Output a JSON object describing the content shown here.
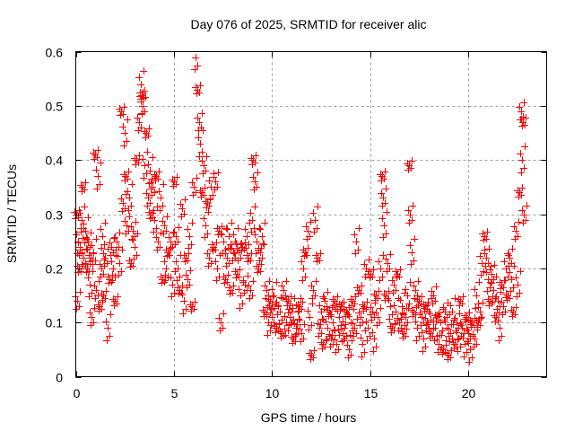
{
  "chart_data": {
    "type": "scatter",
    "title": "Day 076 of 2025, SRMTID for receiver alic",
    "xlabel": "GPS time / hours",
    "ylabel": "SRMTID / TECUs",
    "xlim": [
      0,
      24
    ],
    "ylim": [
      0,
      0.6
    ],
    "xticks": [
      0,
      5,
      10,
      15,
      20
    ],
    "yticks": [
      0,
      0.1,
      0.2,
      0.3,
      0.4,
      0.5,
      0.6
    ],
    "xtick_labels": [
      "0",
      "5",
      "10",
      "15",
      "20"
    ],
    "ytick_labels": [
      "0",
      "0.1",
      "0.2",
      "0.3",
      "0.4",
      "0.5",
      "0.6"
    ],
    "grid": true,
    "marker": "+",
    "color": "#ff0000",
    "series": [
      {
        "name": "SRMTID",
        "x": [
          0.0,
          0.05,
          0.1,
          0.15,
          0.2,
          0.3,
          0.35,
          0.4,
          0.5,
          0.55,
          0.6,
          0.7,
          0.75,
          0.8,
          0.9,
          1.0,
          1.05,
          1.1,
          1.2,
          1.3,
          1.35,
          1.4,
          1.5,
          1.6,
          1.7,
          1.8,
          1.9,
          2.0,
          2.1,
          2.2,
          2.3,
          2.4,
          2.5,
          2.55,
          2.6,
          2.7,
          2.8,
          2.9,
          3.0,
          3.1,
          3.2,
          3.3,
          3.35,
          3.4,
          3.5,
          3.6,
          3.7,
          3.75,
          3.8,
          3.9,
          4.0,
          4.1,
          4.2,
          4.3,
          4.4,
          4.5,
          4.6,
          4.7,
          4.8,
          4.9,
          5.0,
          5.1,
          5.2,
          5.3,
          5.4,
          5.5,
          5.6,
          5.7,
          5.8,
          5.9,
          6.0,
          6.1,
          6.2,
          6.3,
          6.35,
          6.4,
          6.5,
          6.6,
          6.7,
          6.8,
          6.9,
          7.0,
          7.1,
          7.2,
          7.3,
          7.4,
          7.5,
          7.6,
          7.7,
          7.8,
          7.9,
          8.0,
          8.1,
          8.2,
          8.3,
          8.4,
          8.5,
          8.6,
          8.7,
          8.8,
          8.9,
          9.0,
          9.05,
          9.1,
          9.2,
          9.3,
          9.4,
          9.5,
          9.6,
          9.7,
          9.8,
          9.9,
          10.0,
          10.1,
          10.2,
          10.3,
          10.4,
          10.5,
          10.6,
          10.7,
          10.8,
          10.9,
          11.0,
          11.1,
          11.2,
          11.3,
          11.4,
          11.5,
          11.6,
          11.7,
          11.8,
          11.9,
          12.0,
          12.1,
          12.2,
          12.3,
          12.4,
          12.5,
          12.6,
          12.7,
          12.8,
          12.9,
          13.0,
          13.1,
          13.2,
          13.3,
          13.4,
          13.5,
          13.6,
          13.7,
          13.8,
          13.9,
          14.0,
          14.1,
          14.2,
          14.3,
          14.4,
          14.5,
          14.6,
          14.7,
          14.8,
          14.9,
          15.0,
          15.1,
          15.2,
          15.3,
          15.4,
          15.5,
          15.6,
          15.65,
          15.7,
          15.8,
          15.9,
          16.0,
          16.1,
          16.2,
          16.3,
          16.4,
          16.5,
          16.6,
          16.7,
          16.8,
          16.9,
          17.0,
          17.05,
          17.1,
          17.2,
          17.3,
          17.4,
          17.5,
          17.6,
          17.7,
          17.8,
          17.9,
          18.0,
          18.1,
          18.2,
          18.3,
          18.4,
          18.5,
          18.6,
          18.7,
          18.8,
          18.9,
          19.0,
          19.1,
          19.2,
          19.3,
          19.4,
          19.5,
          19.6,
          19.7,
          19.8,
          19.9,
          20.0,
          20.1,
          20.2,
          20.3,
          20.4,
          20.5,
          20.6,
          20.7,
          20.8,
          20.9,
          21.0,
          21.1,
          21.2,
          21.3,
          21.4,
          21.5,
          21.6,
          21.7,
          21.8,
          21.9,
          22.0,
          22.1,
          22.2,
          22.3,
          22.4,
          22.5,
          22.6,
          22.7,
          22.75,
          22.8,
          22.85
        ],
        "y": [
          0.3,
          0.14,
          0.25,
          0.2,
          0.24,
          0.29,
          0.35,
          0.22,
          0.27,
          0.2,
          0.25,
          0.17,
          0.22,
          0.11,
          0.23,
          0.41,
          0.16,
          0.37,
          0.13,
          0.2,
          0.26,
          0.15,
          0.22,
          0.09,
          0.18,
          0.24,
          0.2,
          0.14,
          0.25,
          0.21,
          0.49,
          0.32,
          0.45,
          0.37,
          0.28,
          0.33,
          0.21,
          0.27,
          0.24,
          0.4,
          0.47,
          0.54,
          0.52,
          0.5,
          0.39,
          0.45,
          0.33,
          0.38,
          0.3,
          0.35,
          0.29,
          0.37,
          0.25,
          0.33,
          0.18,
          0.28,
          0.2,
          0.23,
          0.25,
          0.17,
          0.36,
          0.26,
          0.2,
          0.16,
          0.31,
          0.14,
          0.22,
          0.18,
          0.26,
          0.13,
          0.35,
          0.59,
          0.53,
          0.47,
          0.43,
          0.34,
          0.39,
          0.28,
          0.32,
          0.22,
          0.35,
          0.24,
          0.36,
          0.2,
          0.27,
          0.1,
          0.25,
          0.18,
          0.22,
          0.26,
          0.16,
          0.23,
          0.25,
          0.19,
          0.23,
          0.15,
          0.24,
          0.17,
          0.26,
          0.22,
          0.16,
          0.29,
          0.4,
          0.36,
          0.25,
          0.2,
          0.23,
          0.26,
          0.12,
          0.16,
          0.1,
          0.14,
          0.11,
          0.15,
          0.09,
          0.13,
          0.12,
          0.08,
          0.16,
          0.1,
          0.14,
          0.11,
          0.12,
          0.07,
          0.09,
          0.12,
          0.13,
          0.08,
          0.2,
          0.23,
          0.27,
          0.11,
          0.04,
          0.16,
          0.29,
          0.22,
          0.09,
          0.12,
          0.06,
          0.14,
          0.09,
          0.12,
          0.07,
          0.1,
          0.14,
          0.06,
          0.11,
          0.13,
          0.08,
          0.09,
          0.12,
          0.05,
          0.1,
          0.14,
          0.09,
          0.25,
          0.16,
          0.11,
          0.06,
          0.13,
          0.2,
          0.09,
          0.19,
          0.12,
          0.07,
          0.15,
          0.11,
          0.2,
          0.37,
          0.33,
          0.28,
          0.15,
          0.21,
          0.13,
          0.09,
          0.17,
          0.12,
          0.19,
          0.1,
          0.13,
          0.08,
          0.11,
          0.15,
          0.39,
          0.3,
          0.23,
          0.12,
          0.16,
          0.09,
          0.14,
          0.11,
          0.07,
          0.13,
          0.1,
          0.12,
          0.08,
          0.15,
          0.09,
          0.11,
          0.06,
          0.1,
          0.05,
          0.12,
          0.09,
          0.04,
          0.08,
          0.12,
          0.06,
          0.1,
          0.07,
          0.14,
          0.09,
          0.06,
          0.11,
          0.08,
          0.05,
          0.1,
          0.07,
          0.15,
          0.1,
          0.12,
          0.21,
          0.26,
          0.22,
          0.18,
          0.14,
          0.19,
          0.16,
          0.11,
          0.14,
          0.09,
          0.17,
          0.13,
          0.2,
          0.15,
          0.22,
          0.18,
          0.12,
          0.27,
          0.17,
          0.34,
          0.49,
          0.4,
          0.47,
          0.3
        ]
      }
    ]
  }
}
